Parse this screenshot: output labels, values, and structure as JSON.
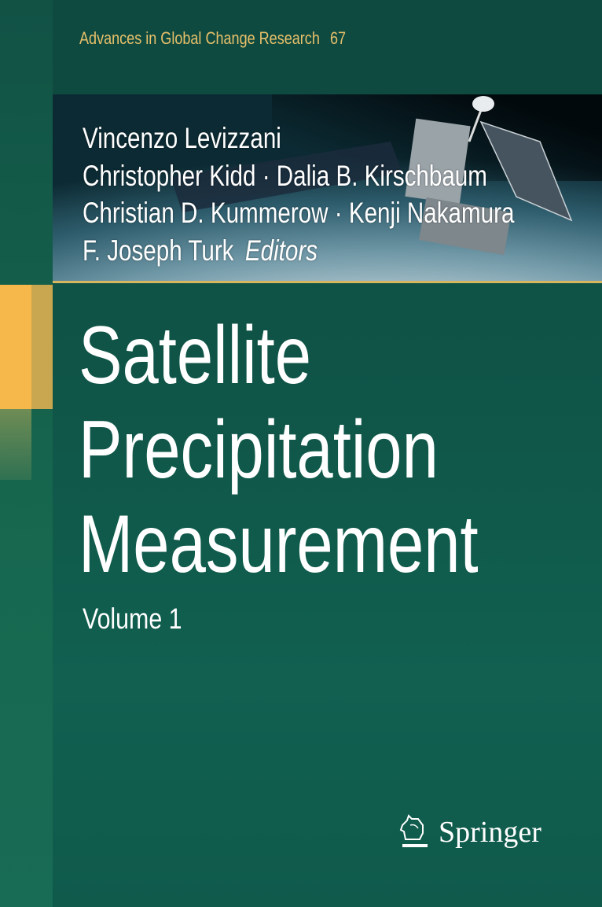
{
  "series": {
    "name": "Advances in Global Change Research",
    "number": "67"
  },
  "editors": [
    "Vincenzo Levizzani",
    "Christopher Kidd · Dalia B. Kirschbaum",
    "Christian D. Kummerow · Kenji Nakamura",
    "F. Joseph Turk"
  ],
  "editors_label": "Editors",
  "title_lines": [
    "Satellite",
    "Precipitation",
    "Measurement"
  ],
  "volume": "Volume 1",
  "publisher": "Springer",
  "colors": {
    "background": "#0f5447",
    "series_text": "#e8c06a",
    "accent_gold": "#f7b84b"
  }
}
